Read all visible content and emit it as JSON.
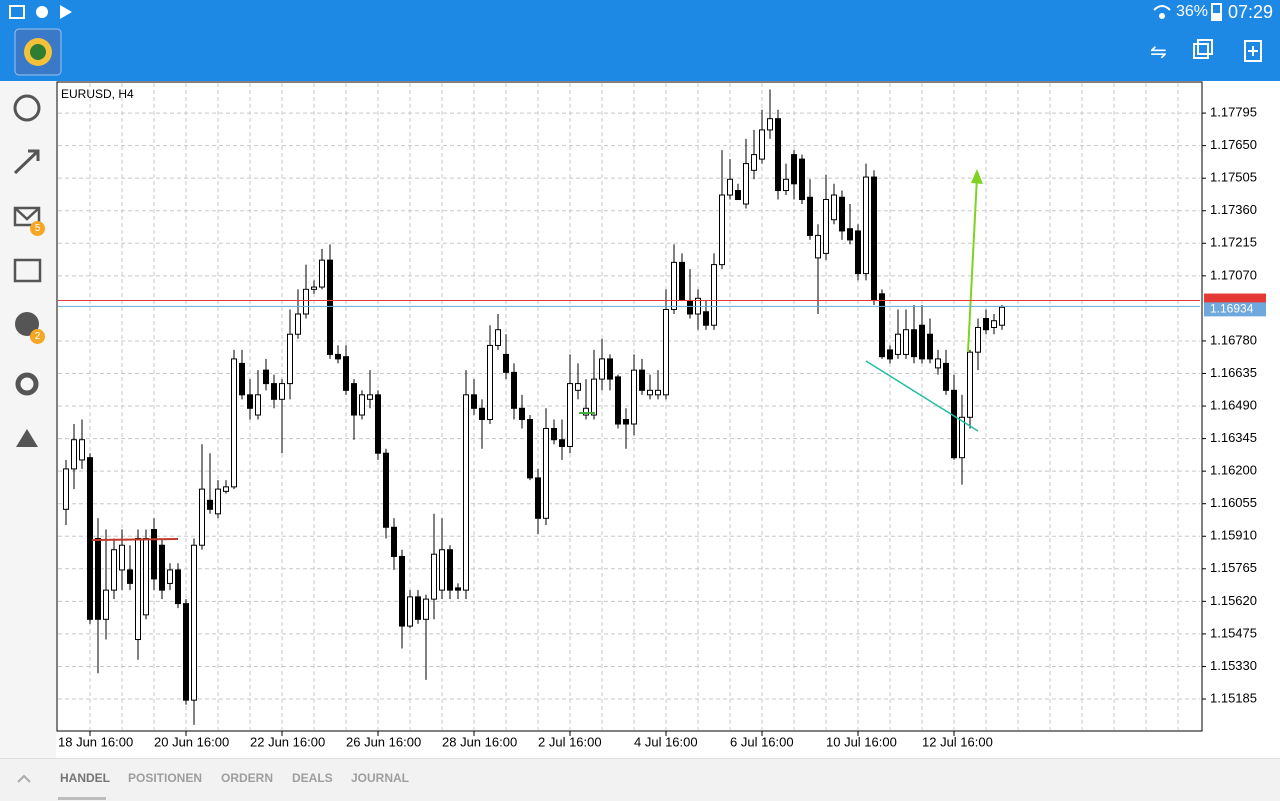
{
  "status_bar": {
    "battery": "36%",
    "time": "07:29"
  },
  "sidebar": {
    "badges": [
      "5",
      "2"
    ]
  },
  "tabs": [
    "HANDEL",
    "POSITIONEN",
    "ORDERN",
    "DEALS",
    "JOURNAL"
  ],
  "chart_data": {
    "type": "candlestick",
    "title": "EURUSD, H4",
    "open": [
      1.1603,
      1.1621,
      1.1625,
      1.1626,
      1.159,
      1.1554,
      1.1567,
      1.1576,
      1.1576,
      1.1545,
      1.1556,
      1.1594,
      1.1587,
      1.157,
      1.1576,
      1.1561,
      1.1518,
      1.1587,
      1.1607,
      1.1601,
      1.1611,
      1.1613,
      1.1668,
      1.1654,
      1.1645,
      1.1665,
      1.1659,
      1.1652,
      1.1659,
      1.1681,
      1.169,
      1.1701,
      1.1702,
      1.1714,
      1.1672,
      1.1671,
      1.1659,
      1.1645,
      1.1652,
      1.1654,
      1.1628,
      1.1595,
      1.1582,
      1.1551,
      1.1564,
      1.1554,
      1.1563,
      1.1567,
      1.1585,
      1.1568,
      1.1567,
      1.1654,
      1.1648,
      1.1643,
      1.1676,
      1.1672,
      1.1664,
      1.1648,
      1.1643,
      1.1617,
      1.1599,
      1.1639,
      1.1634,
      1.1631,
      1.1656,
      1.1645,
      1.1645,
      1.1661,
      1.167,
      1.1662,
      1.1643,
      1.1641,
      1.1665,
      1.1654,
      1.1654,
      1.1654,
      1.1692,
      1.1713,
      1.1696,
      1.169,
      1.1691,
      1.1685,
      1.1712,
      1.1743,
      1.1745,
      1.1739,
      1.1754,
      1.1759,
      1.1772,
      1.1777,
      1.1745,
      1.1761,
      1.1759,
      1.1742,
      1.1715,
      1.1717,
      1.1732,
      1.1742,
      1.1728,
      1.1727,
      1.1708,
      1.1751,
      1.1699,
      1.1674,
      1.1672,
      1.1672,
      1.1683,
      1.1685,
      1.1681,
      1.1666,
      1.1668,
      1.1656,
      1.1626,
      1.1644,
      1.1673,
      1.1688,
      1.1684,
      1.1685
    ],
    "high": [
      1.1625,
      1.1641,
      1.1643,
      1.1628,
      1.1599,
      1.1594,
      1.159,
      1.1594,
      1.1587,
      1.1594,
      1.1594,
      1.1599,
      1.159,
      1.1579,
      1.1579,
      1.1563,
      1.159,
      1.1632,
      1.1628,
      1.1616,
      1.1616,
      1.1674,
      1.1674,
      1.1661,
      1.1665,
      1.167,
      1.1663,
      1.1661,
      1.1692,
      1.1701,
      1.1712,
      1.1705,
      1.1719,
      1.1721,
      1.1676,
      1.1676,
      1.1661,
      1.1656,
      1.1665,
      1.1656,
      1.163,
      1.1599,
      1.1585,
      1.1567,
      1.1567,
      1.1565,
      1.1601,
      1.1599,
      1.1587,
      1.157,
      1.1665,
      1.1661,
      1.1652,
      1.1685,
      1.169,
      1.1681,
      1.1668,
      1.1654,
      1.1645,
      1.1621,
      1.1648,
      1.1643,
      1.1643,
      1.1672,
      1.1668,
      1.1661,
      1.1674,
      1.1679,
      1.1672,
      1.1663,
      1.1648,
      1.1672,
      1.167,
      1.1663,
      1.1665,
      1.1701,
      1.1721,
      1.1717,
      1.171,
      1.1701,
      1.1696,
      1.1717,
      1.1763,
      1.1759,
      1.1748,
      1.1768,
      1.1772,
      1.1781,
      1.179,
      1.1781,
      1.1757,
      1.1763,
      1.1761,
      1.175,
      1.173,
      1.1752,
      1.1748,
      1.1745,
      1.1739,
      1.173,
      1.1757,
      1.1754,
      1.1701,
      1.1676,
      1.1692,
      1.1692,
      1.1694,
      1.1694,
      1.1688,
      1.1674,
      1.1674,
      1.1663,
      1.1654,
      1.1674,
      1.1688,
      1.1692,
      1.169,
      1.1694
    ],
    "low": [
      1.1596,
      1.1612,
      1.1621,
      1.1552,
      1.153,
      1.1545,
      1.1563,
      1.1567,
      1.1567,
      1.1536,
      1.1554,
      1.1567,
      1.1563,
      1.1567,
      1.1559,
      1.1516,
      1.1507,
      1.1585,
      1.1601,
      1.1599,
      1.161,
      1.1612,
      1.1652,
      1.1643,
      1.1643,
      1.1656,
      1.1648,
      1.1628,
      1.1652,
      1.1679,
      1.1688,
      1.1699,
      1.1701,
      1.167,
      1.1668,
      1.1654,
      1.1634,
      1.1643,
      1.1648,
      1.1625,
      1.159,
      1.1576,
      1.1541,
      1.155,
      1.1552,
      1.1527,
      1.1554,
      1.1563,
      1.1563,
      1.1563,
      1.1563,
      1.1645,
      1.163,
      1.1641,
      1.1674,
      1.1661,
      1.1643,
      1.1639,
      1.1616,
      1.1592,
      1.1596,
      1.1632,
      1.1625,
      1.1628,
      1.1652,
      1.1643,
      1.1643,
      1.1656,
      1.1656,
      1.1639,
      1.163,
      1.1636,
      1.1654,
      1.1652,
      1.1652,
      1.1652,
      1.169,
      1.1696,
      1.1688,
      1.1683,
      1.1683,
      1.1683,
      1.171,
      1.1741,
      1.1741,
      1.1737,
      1.175,
      1.1757,
      1.1768,
      1.1741,
      1.1743,
      1.1741,
      1.1739,
      1.1723,
      1.169,
      1.1714,
      1.173,
      1.1723,
      1.1721,
      1.1705,
      1.1705,
      1.1694,
      1.167,
      1.1668,
      1.167,
      1.167,
      1.1668,
      1.1668,
      1.1668,
      1.1663,
      1.1654,
      1.1625,
      1.1614,
      1.1639,
      1.1665,
      1.1681,
      1.1681,
      1.1683
    ],
    "close": [
      1.1621,
      1.1634,
      1.1634,
      1.1554,
      1.1554,
      1.1567,
      1.1585,
      1.1587,
      1.157,
      1.159,
      1.159,
      1.1572,
      1.1567,
      1.1576,
      1.1561,
      1.1518,
      1.1587,
      1.1612,
      1.1603,
      1.1612,
      1.1613,
      1.167,
      1.1654,
      1.1648,
      1.1654,
      1.1659,
      1.1652,
      1.1659,
      1.1681,
      1.169,
      1.1701,
      1.1702,
      1.1714,
      1.1672,
      1.167,
      1.1656,
      1.1645,
      1.1654,
      1.1654,
      1.1628,
      1.1595,
      1.1582,
      1.1551,
      1.1564,
      1.1554,
      1.1563,
      1.1583,
      1.1585,
      1.1567,
      1.1567,
      1.1654,
      1.1648,
      1.1643,
      1.1676,
      1.1683,
      1.1664,
      1.1648,
      1.1643,
      1.1617,
      1.1599,
      1.1639,
      1.1634,
      1.1631,
      1.1659,
      1.1659,
      1.1648,
      1.1661,
      1.167,
      1.1661,
      1.1641,
      1.1641,
      1.1665,
      1.1656,
      1.1656,
      1.1656,
      1.1692,
      1.1713,
      1.1696,
      1.169,
      1.1697,
      1.1685,
      1.1712,
      1.1743,
      1.175,
      1.1741,
      1.1757,
      1.1761,
      1.1772,
      1.1777,
      1.1745,
      1.175,
      1.1748,
      1.1741,
      1.1725,
      1.1725,
      1.1741,
      1.1743,
      1.1727,
      1.1723,
      1.1708,
      1.1751,
      1.1696,
      1.1671,
      1.167,
      1.1681,
      1.1683,
      1.1671,
      1.167,
      1.167,
      1.167,
      1.1656,
      1.1626,
      1.1644,
      1.1673,
      1.1684,
      1.1683,
      1.1687,
      1.1693
    ],
    "up_color": "#ffffff",
    "down_color": "#000000",
    "ylim": [
      1.15047,
      1.17929
    ],
    "yticks": [
      1.17795,
      {
        "value": 1.1765,
        "label": "1.17650"
      },
      1.17505,
      {
        "value": 1.1736,
        "label": "1.17360"
      },
      1.17215,
      {
        "value": 1.1707,
        "label": "1.17070"
      },
      {
        "value": 1.1678,
        "label": "1.16780"
      },
      1.16635,
      {
        "value": 1.1649,
        "label": "1.16490"
      },
      1.16345,
      {
        "value": 1.162,
        "label": "1.16200"
      },
      1.16055,
      {
        "value": 1.1591,
        "label": "1.15910"
      },
      1.15765,
      {
        "value": 1.1562,
        "label": "1.15620"
      },
      1.15475,
      {
        "value": 1.1533,
        "label": "1.15330"
      },
      1.15185
    ],
    "xlim": [
      -1,
      141.75
    ],
    "xticks": [
      {
        "value": 3,
        "label": "18 Jun 16:00"
      },
      {
        "value": 15,
        "label": "20 Jun 16:00"
      },
      {
        "value": 27,
        "label": "22 Jun 16:00"
      },
      {
        "value": 39,
        "label": "26 Jun 16:00"
      },
      {
        "value": 51,
        "label": "28 Jun 16:00"
      },
      {
        "value": 63,
        "label": "2 Jul 16:00"
      },
      {
        "value": 75,
        "label": "4 Jul 16:00"
      },
      {
        "value": 87,
        "label": "6 Jul 16:00"
      },
      {
        "value": 99,
        "label": "10 Jul 16:00"
      },
      {
        "value": 111,
        "label": "12 Jul 16:00"
      }
    ],
    "grid": true,
    "bid": 1.16934,
    "bid_color": "#6fa8dc",
    "ask": 1.1696,
    "ask_color": "#e53935"
  }
}
